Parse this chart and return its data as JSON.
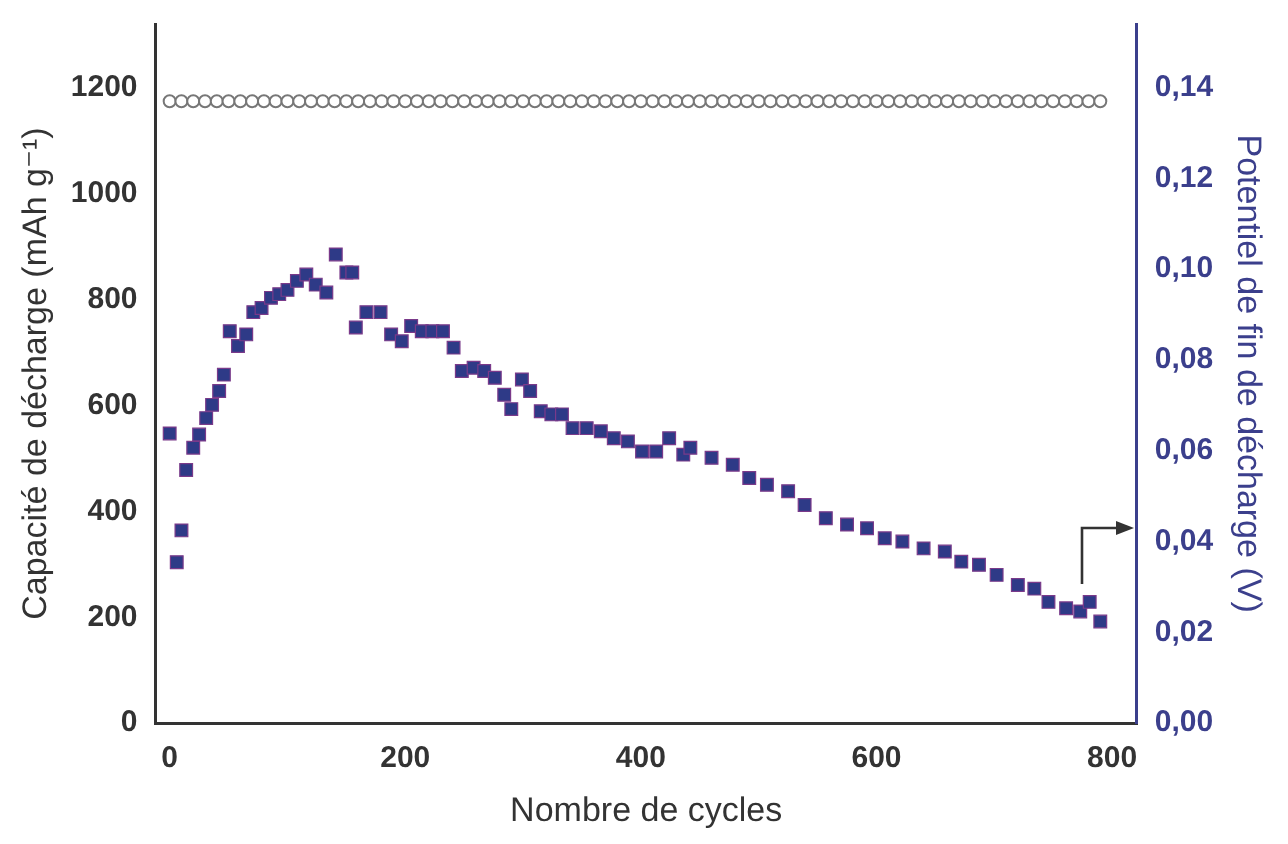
{
  "chart_data": {
    "type": "scatter",
    "xlabel": "Nombre de cycles",
    "ylabel": "Capacité de décharge (mAh g⁻¹)",
    "y2label": "Potentiel de fin de décharge (V)",
    "xlim": [
      -12,
      821
    ],
    "xticks": [
      0,
      200,
      400,
      600,
      800
    ],
    "ylim": [
      0,
      1320
    ],
    "yticks": [
      0,
      200,
      400,
      600,
      800,
      1000,
      1200
    ],
    "y2lim": [
      0,
      0.154
    ],
    "y2ticks": [
      {
        "value": 0,
        "label": "0,00"
      },
      {
        "value": 0.02,
        "label": "0,02"
      },
      {
        "value": 0.04,
        "label": "0,04"
      },
      {
        "value": 0.06,
        "label": "0,06"
      },
      {
        "value": 0.08,
        "label": "0,08"
      },
      {
        "value": 0.1,
        "label": "0,10"
      },
      {
        "value": 0.12,
        "label": "0,12"
      },
      {
        "value": 0.14,
        "label": "0,14"
      }
    ],
    "grid": false,
    "legend": false,
    "series": [
      {
        "marker": "square",
        "color": "#2e3a87",
        "x": [
          0,
          6,
          10,
          14,
          20,
          25,
          31,
          36,
          42,
          46,
          51,
          58,
          65,
          71,
          78,
          86,
          93,
          100,
          108,
          116,
          124,
          133,
          141,
          150,
          155,
          158,
          167,
          179,
          188,
          197,
          205,
          214,
          223,
          232,
          241,
          248,
          258,
          267,
          276,
          284,
          290,
          299,
          306,
          315,
          324,
          333,
          342,
          354,
          366,
          377,
          389,
          401,
          413,
          424,
          436,
          442,
          460,
          478,
          492,
          507,
          525,
          539,
          557,
          575,
          592,
          607,
          622,
          640,
          658,
          672,
          687,
          702,
          720,
          734,
          746,
          761,
          773,
          781,
          790
        ],
        "values": [
          547,
          304,
          364,
          478,
          520,
          545,
          576,
          601,
          627,
          658,
          740,
          712,
          734,
          776,
          784,
          803,
          810,
          818,
          835,
          847,
          828,
          813,
          885,
          851,
          851,
          747,
          776,
          776,
          734,
          721,
          750,
          740,
          740,
          740,
          709,
          665,
          671,
          665,
          652,
          620,
          593,
          649,
          627,
          589,
          583,
          583,
          557,
          557,
          551,
          538,
          532,
          513,
          513,
          538,
          507,
          520,
          501,
          488,
          463,
          450,
          438,
          412,
          387,
          375,
          368,
          349,
          343,
          330,
          324,
          305,
          299,
          280,
          261,
          254,
          229,
          217,
          211,
          229,
          192
        ]
      },
      {
        "marker": "circle",
        "color": "#777777",
        "axis": "y2",
        "x": [
          0,
          10,
          20,
          30,
          40,
          50,
          60,
          70,
          80,
          90,
          100,
          110,
          120,
          130,
          140,
          150,
          160,
          170,
          180,
          190,
          200,
          210,
          220,
          230,
          240,
          250,
          260,
          270,
          280,
          290,
          300,
          310,
          320,
          330,
          340,
          350,
          360,
          370,
          380,
          390,
          400,
          410,
          420,
          430,
          440,
          450,
          460,
          470,
          480,
          490,
          500,
          510,
          520,
          530,
          540,
          550,
          560,
          570,
          580,
          590,
          600,
          610,
          620,
          630,
          640,
          650,
          660,
          670,
          680,
          690,
          700,
          710,
          720,
          730,
          740,
          750,
          760,
          770,
          780,
          790
        ],
        "values": [
          0.137,
          0.137,
          0.137,
          0.137,
          0.137,
          0.137,
          0.137,
          0.137,
          0.137,
          0.137,
          0.137,
          0.137,
          0.137,
          0.137,
          0.137,
          0.137,
          0.137,
          0.137,
          0.137,
          0.137,
          0.137,
          0.137,
          0.137,
          0.137,
          0.137,
          0.137,
          0.137,
          0.137,
          0.137,
          0.137,
          0.137,
          0.137,
          0.137,
          0.137,
          0.137,
          0.137,
          0.137,
          0.137,
          0.137,
          0.137,
          0.137,
          0.137,
          0.137,
          0.137,
          0.137,
          0.137,
          0.137,
          0.137,
          0.137,
          0.137,
          0.137,
          0.137,
          0.137,
          0.137,
          0.137,
          0.137,
          0.137,
          0.137,
          0.137,
          0.137,
          0.137,
          0.137,
          0.137,
          0.137,
          0.137,
          0.137,
          0.137,
          0.137,
          0.137,
          0.137,
          0.137,
          0.137,
          0.137,
          0.137,
          0.137,
          0.137,
          0.137,
          0.137,
          0.137,
          0.137
        ]
      }
    ]
  }
}
